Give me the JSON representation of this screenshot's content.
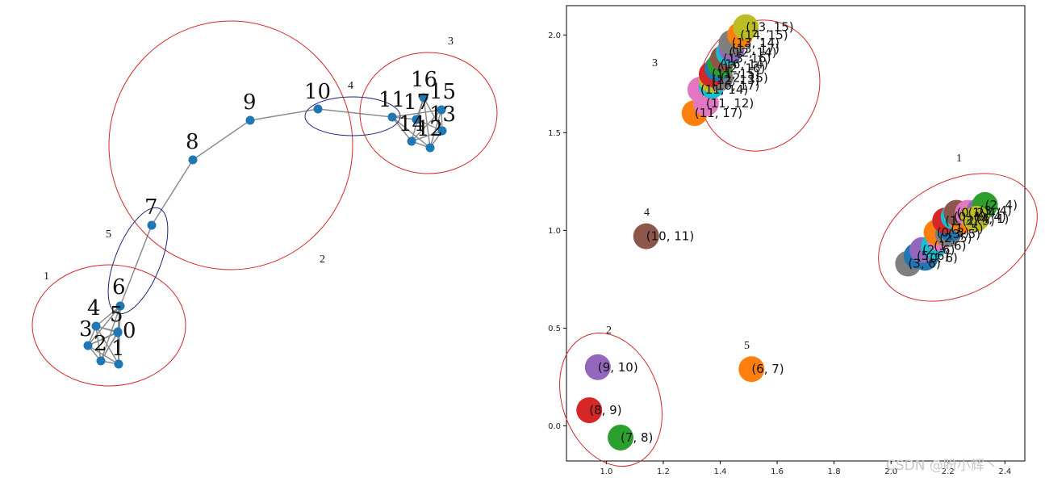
{
  "graph": {
    "nodes": [
      {
        "id": "0",
        "label": "0"
      },
      {
        "id": "1",
        "label": "1"
      },
      {
        "id": "2",
        "label": "2"
      },
      {
        "id": "3",
        "label": "3"
      },
      {
        "id": "4",
        "label": "4"
      },
      {
        "id": "5",
        "label": "5"
      },
      {
        "id": "6",
        "label": "6"
      },
      {
        "id": "7",
        "label": "7"
      },
      {
        "id": "8",
        "label": "8"
      },
      {
        "id": "9",
        "label": "9"
      },
      {
        "id": "10",
        "label": "10"
      },
      {
        "id": "11",
        "label": "11"
      },
      {
        "id": "12",
        "label": "12"
      },
      {
        "id": "13",
        "label": "13"
      },
      {
        "id": "14",
        "label": "14"
      },
      {
        "id": "15",
        "label": "15"
      },
      {
        "id": "16",
        "label": "16"
      },
      {
        "id": "17",
        "label": "17"
      }
    ],
    "cluster_labels": [
      "1",
      "2",
      "3",
      "4",
      "5"
    ],
    "node_color": "#1f77b4",
    "edge_color": "#8c8c8c",
    "cluster_color": "#d62728",
    "bridge_color": "#1a237e"
  },
  "chart_data": {
    "type": "scatter",
    "title": "",
    "xlabel": "",
    "ylabel": "",
    "xlim": [
      0.86,
      2.47
    ],
    "ylim": [
      -0.18,
      2.15
    ],
    "x_ticks": [
      "1.0",
      "1.2",
      "1.4",
      "1.6",
      "1.8",
      "2.0",
      "2.2",
      "2.4"
    ],
    "y_ticks": [
      "0.0",
      "0.5",
      "1.0",
      "1.5",
      "2.0"
    ],
    "points": [
      {
        "label": "(7, 8)",
        "x": 1.05,
        "y": -0.06,
        "color": "#2ca02c"
      },
      {
        "label": "(8, 9)",
        "x": 0.94,
        "y": 0.08,
        "color": "#d62728"
      },
      {
        "label": "(9, 10)",
        "x": 0.97,
        "y": 0.3,
        "color": "#9467bd"
      },
      {
        "label": "(6, 7)",
        "x": 1.51,
        "y": 0.29,
        "color": "#ff7f0e"
      },
      {
        "label": "(10, 11)",
        "x": 1.14,
        "y": 0.97,
        "color": "#8c564b"
      },
      {
        "label": "(11, 17)",
        "x": 1.31,
        "y": 1.6,
        "color": "#ff7f0e"
      },
      {
        "label": "(11, 12)",
        "x": 1.35,
        "y": 1.65,
        "color": "#e377c2"
      },
      {
        "label": "(11, 14)",
        "x": 1.33,
        "y": 1.72,
        "color": "#e377c2"
      },
      {
        "label": "(16, 17)",
        "x": 1.37,
        "y": 1.74,
        "color": "#17becf"
      },
      {
        "label": "(12, 13)",
        "x": 1.37,
        "y": 1.77,
        "color": "#bcbd22"
      },
      {
        "label": "(12, 15)",
        "x": 1.4,
        "y": 1.78,
        "color": "#7f7f7f"
      },
      {
        "label": "(11, 15)",
        "x": 1.37,
        "y": 1.8,
        "color": "#d62728"
      },
      {
        "label": "(12, 16)",
        "x": 1.39,
        "y": 1.83,
        "color": "#1f77b4"
      },
      {
        "label": "(16, 14)",
        "x": 1.4,
        "y": 1.85,
        "color": "#2ca02c"
      },
      {
        "label": "(13, 16)",
        "x": 1.41,
        "y": 1.88,
        "color": "#8c564b"
      },
      {
        "label": "(12, 14)",
        "x": 1.43,
        "y": 1.91,
        "color": "#17becf"
      },
      {
        "label": "(13, 17)",
        "x": 1.44,
        "y": 1.93,
        "color": "#9467bd"
      },
      {
        "label": "(13, 14)",
        "x": 1.44,
        "y": 1.96,
        "color": "#7f7f7f"
      },
      {
        "label": "(14, 15)",
        "x": 1.47,
        "y": 2.0,
        "color": "#ff7f0e"
      },
      {
        "label": "(13, 15)",
        "x": 1.49,
        "y": 2.04,
        "color": "#bcbd22"
      },
      {
        "label": "(3, 6)",
        "x": 2.06,
        "y": 0.83,
        "color": "#7f7f7f"
      },
      {
        "label": "(5, 6)",
        "x": 2.09,
        "y": 0.87,
        "color": "#1f77b4"
      },
      {
        "label": "(0, 6)",
        "x": 2.12,
        "y": 0.86,
        "color": "#1f77b4"
      },
      {
        "label": "(2, 6)",
        "x": 2.11,
        "y": 0.9,
        "color": "#9467bd"
      },
      {
        "label": "(1, 6)",
        "x": 2.15,
        "y": 0.92,
        "color": "#17becf"
      },
      {
        "label": "(2, 5)",
        "x": 2.17,
        "y": 0.96,
        "color": "#e377c2"
      },
      {
        "label": "(0, 3)",
        "x": 2.16,
        "y": 0.99,
        "color": "#ff7f0e"
      },
      {
        "label": "(3, 5)",
        "x": 2.2,
        "y": 0.98,
        "color": "#7f7f7f"
      },
      {
        "label": "(1, 5)",
        "x": 2.21,
        "y": 1.01,
        "color": "#1f77b4"
      },
      {
        "label": "(1, 3)",
        "x": 2.19,
        "y": 1.05,
        "color": "#d62728"
      },
      {
        "label": "(0, 1)",
        "x": 2.22,
        "y": 1.07,
        "color": "#17becf"
      },
      {
        "label": "(2, 3)",
        "x": 2.25,
        "y": 1.05,
        "color": "#ff7f0e"
      },
      {
        "label": "(0, 2)",
        "x": 2.23,
        "y": 1.09,
        "color": "#8c564b"
      },
      {
        "label": "(1, 4)",
        "x": 2.27,
        "y": 1.09,
        "color": "#e377c2"
      },
      {
        "label": "(0, 4)",
        "x": 2.29,
        "y": 1.07,
        "color": "#bcbd22"
      },
      {
        "label": "(3, 4)",
        "x": 2.31,
        "y": 1.1,
        "color": "#9467bd"
      },
      {
        "label": "(2, 4)",
        "x": 2.33,
        "y": 1.13,
        "color": "#2ca02c"
      },
      {
        "label": "(4, 1)",
        "x": 2.3,
        "y": 1.06,
        "color": "#bcbd22"
      }
    ],
    "cluster_labels": [
      "1",
      "2",
      "3",
      "4",
      "5"
    ]
  },
  "watermark": "CSDN @盼小辉丶"
}
